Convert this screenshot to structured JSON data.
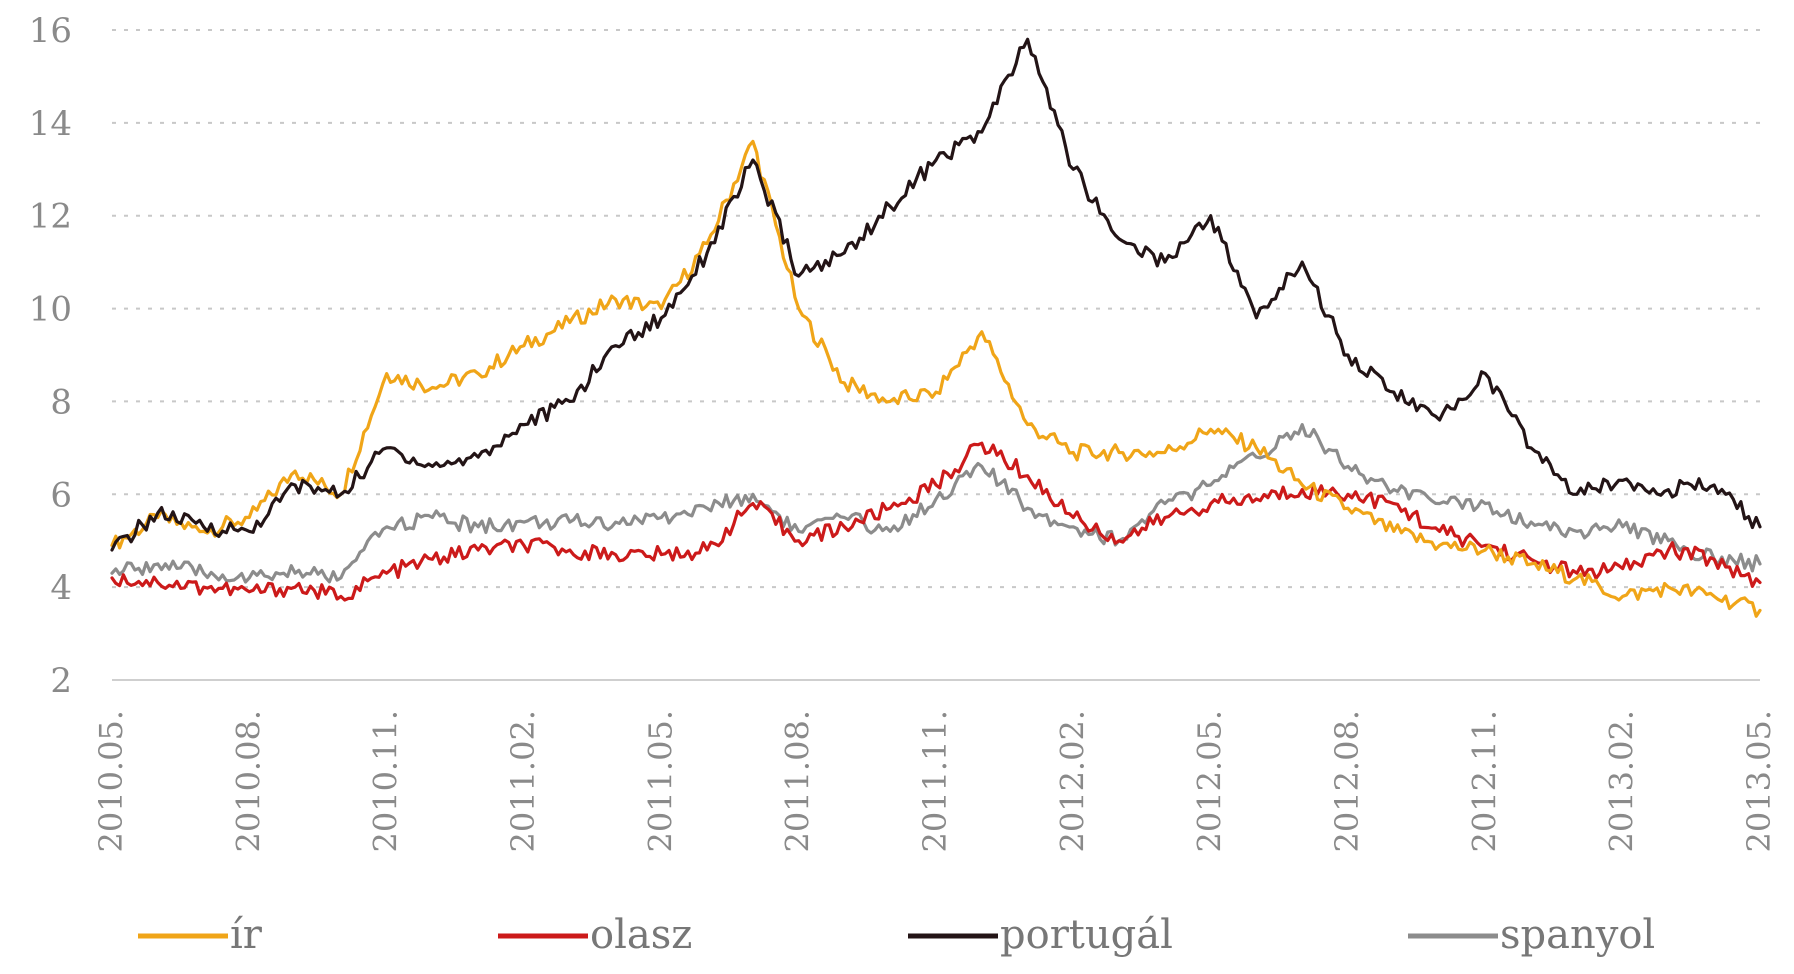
{
  "chart_data": {
    "type": "line",
    "title": "",
    "xlabel": "",
    "ylabel": "",
    "ylim": [
      2,
      16
    ],
    "yticks": [
      "16",
      "14",
      "12",
      "10",
      "8",
      "6",
      "4",
      "2"
    ],
    "xlim": [
      "2010-05",
      "2013-05"
    ],
    "xticks": [
      "2010.05.",
      "2010.08.",
      "2010.11.",
      "2011.02.",
      "2011.05.",
      "2011.08.",
      "2011.11.",
      "2012.02.",
      "2012.05.",
      "2012.08.",
      "2012.11.",
      "2013.02.",
      "2013.05."
    ],
    "grid": "horizontal dotted",
    "legend": "bottom",
    "x": [
      "2010-05",
      "2010-06",
      "2010-07",
      "2010-08",
      "2010-09",
      "2010-10",
      "2010-11",
      "2010-12",
      "2011-01",
      "2011-02",
      "2011-03",
      "2011-04",
      "2011-05",
      "2011-06",
      "2011-07",
      "2011-08",
      "2011-09",
      "2011-10",
      "2011-11",
      "2011-12",
      "2012-01",
      "2012-02",
      "2012-03",
      "2012-04",
      "2012-05",
      "2012-06",
      "2012-07",
      "2012-08",
      "2012-09",
      "2012-10",
      "2012-11",
      "2012-12",
      "2013-01",
      "2013-02",
      "2013-03",
      "2013-04",
      "2013-05"
    ],
    "series": [
      {
        "name": "ír",
        "color": "#f0a518",
        "values": [
          4.9,
          5.5,
          5.2,
          5.5,
          6.5,
          6.0,
          8.6,
          8.3,
          8.6,
          9.2,
          9.7,
          10.2,
          10.0,
          11.4,
          13.6,
          10.0,
          8.4,
          8.0,
          8.2,
          9.5,
          7.5,
          6.9,
          6.9,
          6.9,
          7.4,
          7.0,
          6.2,
          5.7,
          5.2,
          4.9,
          4.8,
          4.5,
          4.2,
          3.8,
          4.0,
          3.8,
          3.5
        ]
      },
      {
        "name": "olasz",
        "color": "#cc1a1a",
        "values": [
          4.2,
          4.1,
          4.0,
          3.9,
          4.0,
          3.8,
          4.3,
          4.6,
          4.8,
          4.9,
          4.8,
          4.7,
          4.7,
          4.8,
          5.8,
          5.0,
          5.3,
          5.7,
          6.2,
          7.1,
          6.4,
          5.5,
          5.0,
          5.5,
          5.8,
          5.9,
          6.1,
          6.0,
          5.8,
          5.2,
          4.9,
          4.6,
          4.3,
          4.4,
          4.8,
          4.6,
          4.1
        ]
      },
      {
        "name": "portugál",
        "color": "#231416",
        "values": [
          4.8,
          5.6,
          5.3,
          5.2,
          6.2,
          6.0,
          7.0,
          6.6,
          6.8,
          7.5,
          8.0,
          9.2,
          9.8,
          11.2,
          13.2,
          10.7,
          11.2,
          12.2,
          13.2,
          13.8,
          15.8,
          13.0,
          11.5,
          11.0,
          12.0,
          9.8,
          11.0,
          9.0,
          8.2,
          7.6,
          8.6,
          7.0,
          6.0,
          6.3,
          6.1,
          6.2,
          5.3
        ]
      },
      {
        "name": "spanyol",
        "color": "#8c8c8c",
        "values": [
          4.3,
          4.5,
          4.3,
          4.2,
          4.3,
          4.2,
          5.3,
          5.5,
          5.3,
          5.4,
          5.4,
          5.4,
          5.5,
          5.7,
          6.0,
          5.2,
          5.5,
          5.2,
          5.9,
          6.6,
          5.7,
          5.3,
          5.0,
          5.8,
          6.2,
          6.8,
          7.5,
          6.6,
          6.1,
          5.8,
          5.8,
          5.4,
          5.2,
          5.3,
          5.0,
          4.6,
          4.5
        ]
      }
    ]
  }
}
